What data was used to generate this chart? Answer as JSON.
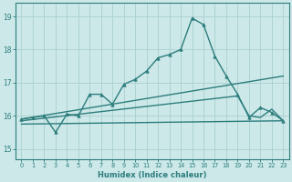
{
  "xlabel": "Humidex (Indice chaleur)",
  "xlim": [
    -0.5,
    23.5
  ],
  "ylim": [
    14.7,
    19.4
  ],
  "background_color": "#cce8e8",
  "grid_color": "#aacfcf",
  "line_color": "#2d7d7d",
  "xticks": [
    0,
    1,
    2,
    3,
    4,
    5,
    6,
    7,
    8,
    9,
    10,
    11,
    12,
    13,
    14,
    15,
    16,
    17,
    18,
    19,
    20,
    21,
    22,
    23
  ],
  "yticks": [
    15,
    16,
    17,
    18,
    19
  ],
  "series": [
    {
      "x": [
        0,
        1,
        2,
        3,
        4,
        5,
        6,
        7,
        8,
        9,
        10,
        11,
        12,
        13,
        14,
        15,
        16,
        17,
        18,
        19,
        20,
        21,
        22,
        23
      ],
      "y": [
        15.9,
        15.95,
        16.0,
        15.5,
        16.05,
        16.0,
        16.65,
        16.65,
        16.35,
        16.95,
        17.1,
        17.35,
        17.75,
        17.85,
        18.0,
        18.95,
        18.75,
        17.8,
        17.2,
        16.65,
        15.95,
        16.25,
        16.1,
        15.85
      ],
      "marker": "^",
      "markersize": 2.5,
      "linewidth": 1.0
    },
    {
      "x": [
        0,
        23
      ],
      "y": [
        15.9,
        17.2
      ],
      "marker": null,
      "markersize": 0,
      "linewidth": 1.0
    },
    {
      "x": [
        0,
        19,
        20,
        21,
        22,
        23
      ],
      "y": [
        15.85,
        16.6,
        16.0,
        15.95,
        16.2,
        15.85
      ],
      "marker": null,
      "markersize": 0,
      "linewidth": 1.0
    },
    {
      "x": [
        0,
        23
      ],
      "y": [
        15.75,
        15.85
      ],
      "marker": null,
      "markersize": 0,
      "linewidth": 1.0
    }
  ]
}
